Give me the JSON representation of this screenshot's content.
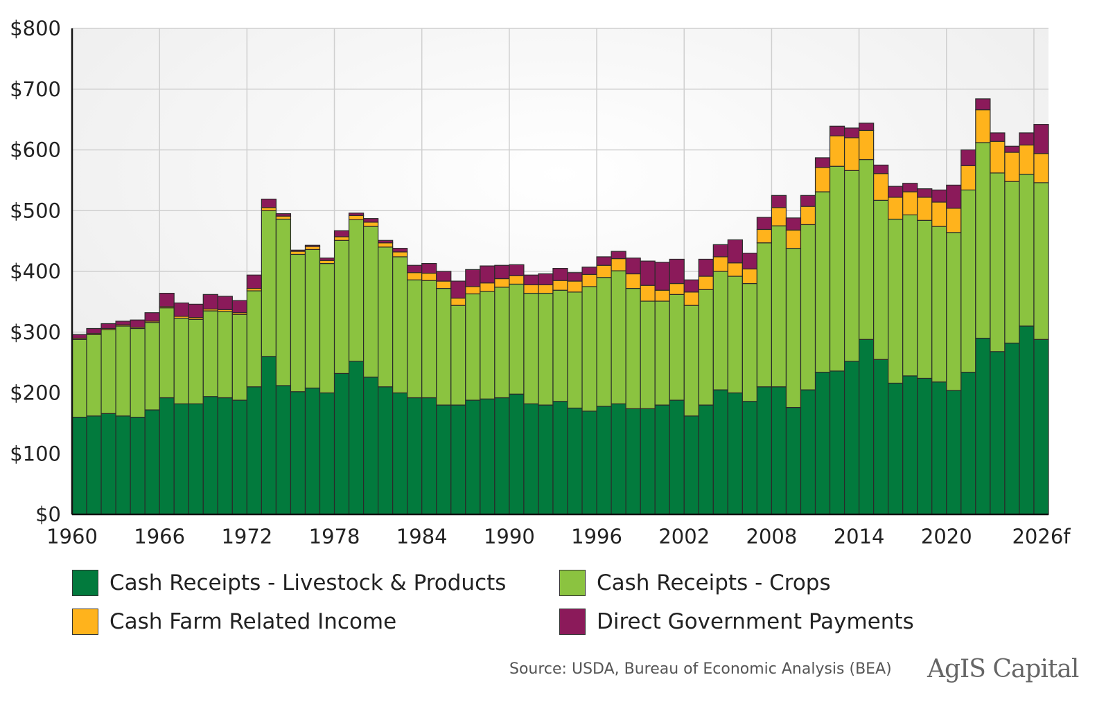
{
  "chart_data": {
    "type": "bar",
    "stacked": true,
    "title": "",
    "xlabel": "",
    "ylabel": "",
    "ylim": [
      0,
      800
    ],
    "y_ticks": [
      "$0",
      "$100",
      "$200",
      "$300",
      "$400",
      "$500",
      "$600",
      "$700",
      "$800"
    ],
    "x_ticks": [
      "1960",
      "1966",
      "1972",
      "1978",
      "1984",
      "1990",
      "1996",
      "2002",
      "2008",
      "2014",
      "2020",
      "2026f"
    ],
    "grid": true,
    "legend_position": "bottom",
    "categories": [
      "1960",
      "1961",
      "1962",
      "1963",
      "1964",
      "1965",
      "1966",
      "1967",
      "1968",
      "1969",
      "1970",
      "1971",
      "1972",
      "1973",
      "1974",
      "1975",
      "1976",
      "1977",
      "1978",
      "1979",
      "1980",
      "1981",
      "1982",
      "1983",
      "1984",
      "1985",
      "1986",
      "1987",
      "1988",
      "1989",
      "1990",
      "1991",
      "1992",
      "1993",
      "1994",
      "1995",
      "1996",
      "1997",
      "1998",
      "1999",
      "2000",
      "2001",
      "2002",
      "2003",
      "2004",
      "2005",
      "2006",
      "2007",
      "2008",
      "2009",
      "2010",
      "2011",
      "2012",
      "2013",
      "2014",
      "2015",
      "2016",
      "2017",
      "2018",
      "2019",
      "2020",
      "2021",
      "2022",
      "2023",
      "2024",
      "2025",
      "2026f"
    ],
    "series": [
      {
        "name": "Cash Receipts - Livestock & Products",
        "color": "#027a3d",
        "values": [
          160,
          162,
          166,
          162,
          160,
          172,
          192,
          182,
          182,
          194,
          192,
          188,
          210,
          260,
          212,
          202,
          208,
          200,
          232,
          252,
          226,
          210,
          200,
          192,
          192,
          180,
          180,
          188,
          190,
          192,
          198,
          182,
          180,
          186,
          175,
          170,
          178,
          182,
          174,
          174,
          180,
          188,
          162,
          180,
          205,
          200,
          186,
          210,
          210,
          176,
          205,
          234,
          236,
          252,
          288,
          255,
          216,
          228,
          224,
          218,
          204,
          234,
          290,
          268,
          282,
          310,
          288
        ]
      },
      {
        "name": "Cash Receipts - Crops",
        "color": "#8bc340",
        "values": [
          128,
          134,
          138,
          148,
          146,
          144,
          148,
          141,
          139,
          141,
          142,
          141,
          158,
          240,
          274,
          226,
          228,
          213,
          219,
          233,
          248,
          230,
          224,
          194,
          193,
          192,
          164,
          175,
          177,
          182,
          181,
          182,
          184,
          183,
          191,
          205,
          212,
          219,
          198,
          177,
          171,
          174,
          182,
          190,
          195,
          192,
          194,
          237,
          265,
          262,
          272,
          297,
          337,
          314,
          296,
          262,
          270,
          265,
          260,
          256,
          260,
          300,
          322,
          294,
          266,
          250,
          258
        ]
      },
      {
        "name": "Cash Farm Related Income",
        "color": "#ffb31c",
        "values": [
          2,
          2,
          2,
          2,
          2,
          2,
          2,
          3,
          3,
          3,
          3,
          3,
          4,
          5,
          5,
          5,
          5,
          5,
          6,
          7,
          7,
          7,
          8,
          12,
          12,
          12,
          12,
          12,
          14,
          14,
          14,
          14,
          14,
          16,
          18,
          20,
          20,
          20,
          24,
          26,
          18,
          18,
          22,
          22,
          24,
          22,
          24,
          22,
          30,
          30,
          30,
          40,
          50,
          54,
          48,
          44,
          36,
          38,
          38,
          40,
          40,
          40,
          54,
          52,
          48,
          48,
          48
        ]
      },
      {
        "name": "Direct Government Payments",
        "color": "#8b1a5a",
        "values": [
          6,
          8,
          8,
          6,
          12,
          14,
          22,
          22,
          22,
          24,
          22,
          20,
          22,
          14,
          4,
          2,
          2,
          4,
          10,
          4,
          6,
          4,
          6,
          12,
          16,
          16,
          28,
          28,
          28,
          22,
          18,
          16,
          18,
          20,
          14,
          12,
          14,
          12,
          26,
          40,
          46,
          40,
          20,
          28,
          20,
          38,
          26,
          20,
          20,
          20,
          18,
          16,
          16,
          16,
          12,
          14,
          18,
          14,
          14,
          20,
          38,
          26,
          18,
          14,
          10,
          20,
          48
        ]
      }
    ]
  },
  "legend": [
    {
      "label": "Cash Receipts - Livestock & Products",
      "color": "#027a3d"
    },
    {
      "label": "Cash Receipts - Crops",
      "color": "#8bc340"
    },
    {
      "label": "Cash Farm Related Income",
      "color": "#ffb31c"
    },
    {
      "label": "Direct Government Payments",
      "color": "#8b1a5a"
    }
  ],
  "source": "Source: USDA, Bureau of Economic Analysis (BEA)",
  "logo_text": "AgIS Capital"
}
